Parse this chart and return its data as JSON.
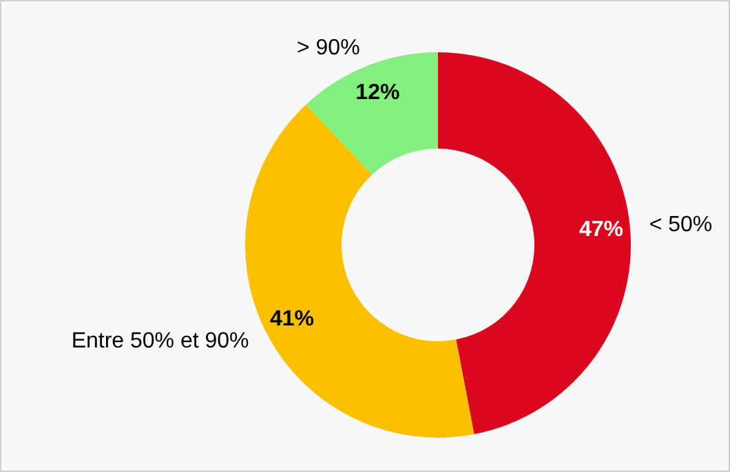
{
  "chart_data": {
    "type": "donut",
    "categories": [
      "< 50%",
      "Entre 50% et 90%",
      "> 90%"
    ],
    "values": [
      47,
      41,
      12
    ],
    "colors": [
      "#d9081f",
      "#f9c000",
      "#82f07e"
    ],
    "value_labels": [
      "47%",
      "41%",
      "12%"
    ]
  }
}
